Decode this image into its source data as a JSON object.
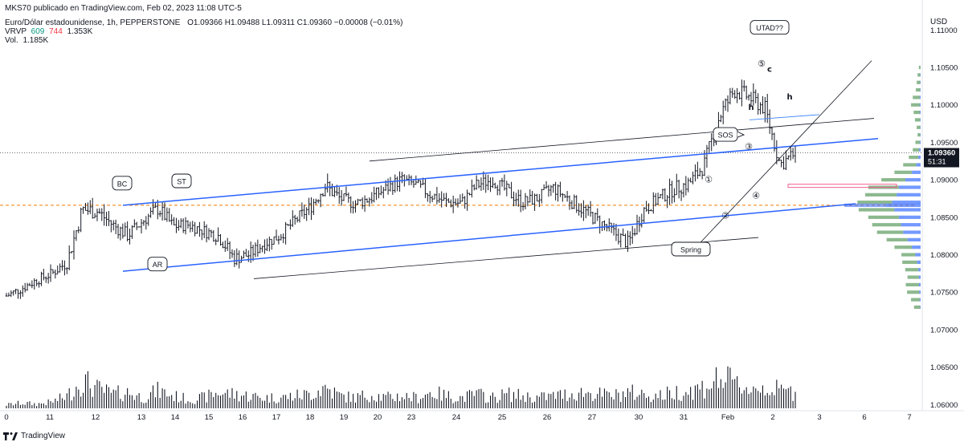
{
  "header": {
    "publisher": "MKS70 publicado en TradingView.com, Feb 02, 2023 11:08 UTC-5",
    "symbol": "Euro/Dólar estadounidense, 1h, PEPPERSTONE",
    "ohlc": "O1.09366  H1.09488  L1.09311  C1.09360  −0.00008 (−0.01%)",
    "vrvp_label": "VRVP",
    "vrvp_v1": "609",
    "vrvp_v2": "744",
    "vrvp_v3": "1.353K",
    "vol_label": "Vol.",
    "vol_value": "1.185K"
  },
  "footer": {
    "brand": "TradingView"
  },
  "colors": {
    "candle": "#131722",
    "channel": "#2962ff",
    "trendline": "#131722",
    "poc": "#f57c00",
    "profile_up": "#2e7d32",
    "profile_poc": "#2962ff",
    "pink": "#f06292",
    "label_bg": "#131722",
    "label_fg": "#ffffff"
  },
  "chart_data": {
    "type": "candlestick",
    "title": "Euro/Dólar estadounidense, 1h, PEPPERSTONE",
    "currency": "USD",
    "x_ticks": [
      "0",
      "11",
      "12",
      "13",
      "14",
      "15",
      "16",
      "17",
      "18",
      "19",
      "20",
      "23",
      "24",
      "25",
      "26",
      "27",
      "30",
      "31",
      "Feb",
      "2",
      "3",
      "6",
      "7"
    ],
    "y_ticks": [
      "1.11000",
      "1.10500",
      "1.10000",
      "1.09500",
      "1.09000",
      "1.08500",
      "1.08000",
      "1.07500",
      "1.07000",
      "1.06500",
      "1.06000"
    ],
    "ylim": [
      1.0595,
      1.1125
    ],
    "last_price": "1.09360",
    "countdown": "51:31",
    "poc_price": 1.0866,
    "pink_zone": 1.0892,
    "annotations": [
      {
        "text": "BC",
        "x": "12.5",
        "y": 1.0895,
        "style": "box"
      },
      {
        "text": "ST",
        "x": "15.7",
        "y": 1.0898,
        "style": "box"
      },
      {
        "text": "AR",
        "x": "13.4",
        "y": 1.0787,
        "style": "box"
      },
      {
        "text": "Spring",
        "x": "31.1",
        "y": 1.0807,
        "style": "box"
      },
      {
        "text": "SOS",
        "x": "Feb",
        "y": 1.096,
        "style": "callout"
      },
      {
        "text": "UTAD??",
        "x": "2",
        "y": 1.1103,
        "style": "box"
      },
      {
        "text": "①",
        "x": "31.4",
        "y": 1.09,
        "style": "text"
      },
      {
        "text": "②",
        "x": "31.9",
        "y": 1.0852,
        "style": "text"
      },
      {
        "text": "③",
        "x": "Feb",
        "y": 1.0944,
        "style": "text"
      },
      {
        "text": "④",
        "x": "Feb",
        "y": 1.0879,
        "style": "text"
      },
      {
        "text": "⑤",
        "x": "1.6",
        "y": 1.1055,
        "style": "text"
      },
      {
        "text": "c",
        "x": "1.8",
        "y": 1.1048,
        "style": "text"
      },
      {
        "text": "h",
        "x": "1.3",
        "y": 1.0997,
        "style": "text"
      },
      {
        "text": "h",
        "x": "2.4",
        "y": 1.1011,
        "style": "text"
      }
    ],
    "price_path": [
      [
        1.0745,
        0.1
      ],
      [
        1.0755,
        0.15
      ],
      [
        1.0766,
        0.12
      ],
      [
        1.0775,
        0.18
      ],
      [
        1.079,
        0.35
      ],
      [
        1.086,
        0.8
      ],
      [
        1.0858,
        0.55
      ],
      [
        1.084,
        0.4
      ],
      [
        1.0826,
        0.45
      ],
      [
        1.0845,
        0.3
      ],
      [
        1.0862,
        0.5
      ],
      [
        1.0838,
        0.35
      ],
      [
        1.084,
        0.25
      ],
      [
        1.0832,
        0.3
      ],
      [
        1.0825,
        0.45
      ],
      [
        1.0795,
        0.4
      ],
      [
        1.08,
        0.35
      ],
      [
        1.0815,
        0.3
      ],
      [
        1.0825,
        0.3
      ],
      [
        1.0845,
        0.35
      ],
      [
        1.0863,
        0.4
      ],
      [
        1.0892,
        0.6
      ],
      [
        1.0875,
        0.35
      ],
      [
        1.0868,
        0.3
      ],
      [
        1.0876,
        0.4
      ],
      [
        1.0888,
        0.3
      ],
      [
        1.09,
        0.35
      ],
      [
        1.0893,
        0.3
      ],
      [
        1.088,
        0.45
      ],
      [
        1.087,
        0.35
      ],
      [
        1.0869,
        0.3
      ],
      [
        1.0893,
        0.4
      ],
      [
        1.09,
        0.3
      ],
      [
        1.0885,
        0.4
      ],
      [
        1.087,
        0.35
      ],
      [
        1.0875,
        0.3
      ],
      [
        1.089,
        0.35
      ],
      [
        1.0875,
        0.4
      ],
      [
        1.086,
        0.45
      ],
      [
        1.0845,
        0.4
      ],
      [
        1.083,
        0.35
      ],
      [
        1.0815,
        0.45
      ],
      [
        1.086,
        0.4
      ],
      [
        1.0875,
        0.35
      ],
      [
        1.0888,
        0.45
      ],
      [
        1.0895,
        0.5
      ],
      [
        1.092,
        0.6
      ],
      [
        1.0985,
        0.85
      ],
      [
        1.102,
        0.7
      ],
      [
        1.101,
        0.55
      ],
      [
        1.0995,
        0.6
      ],
      [
        1.092,
        0.5
      ],
      [
        1.0936,
        0.45
      ]
    ],
    "volume_profile": [
      {
        "price": 1.105,
        "up": 0.04,
        "down": 0.0
      },
      {
        "price": 1.104,
        "up": 0.06,
        "down": 0.01
      },
      {
        "price": 1.103,
        "up": 0.08,
        "down": 0.01
      },
      {
        "price": 1.102,
        "up": 0.1,
        "down": 0.01
      },
      {
        "price": 1.101,
        "up": 0.16,
        "down": 0.02
      },
      {
        "price": 1.1,
        "up": 0.2,
        "down": 0.02
      },
      {
        "price": 1.099,
        "up": 0.14,
        "down": 0.02
      },
      {
        "price": 1.098,
        "up": 0.12,
        "down": 0.01
      },
      {
        "price": 1.097,
        "up": 0.08,
        "down": 0.01
      },
      {
        "price": 1.096,
        "up": 0.06,
        "down": 0.01
      },
      {
        "price": 1.095,
        "up": 0.1,
        "down": 0.02
      },
      {
        "price": 1.094,
        "up": 0.15,
        "down": 0.03
      },
      {
        "price": 1.093,
        "up": 0.22,
        "down": 0.05
      },
      {
        "price": 1.092,
        "up": 0.3,
        "down": 0.1
      },
      {
        "price": 1.091,
        "up": 0.4,
        "down": 0.2
      },
      {
        "price": 1.09,
        "up": 0.55,
        "down": 0.35
      },
      {
        "price": 1.089,
        "up": 0.7,
        "down": 0.5
      },
      {
        "price": 1.088,
        "up": 0.72,
        "down": 0.55
      },
      {
        "price": 1.087,
        "up": 0.8,
        "down": 0.65
      },
      {
        "price": 1.0866,
        "up": 0.95,
        "down": 0.8
      },
      {
        "price": 1.086,
        "up": 0.82,
        "down": 0.6
      },
      {
        "price": 1.085,
        "up": 0.7,
        "down": 0.5
      },
      {
        "price": 1.084,
        "up": 0.66,
        "down": 0.45
      },
      {
        "price": 1.083,
        "up": 0.6,
        "down": 0.4
      },
      {
        "price": 1.082,
        "up": 0.48,
        "down": 0.3
      },
      {
        "price": 1.081,
        "up": 0.4,
        "down": 0.2
      },
      {
        "price": 1.08,
        "up": 0.32,
        "down": 0.12
      },
      {
        "price": 1.079,
        "up": 0.34,
        "down": 0.08
      },
      {
        "price": 1.078,
        "up": 0.3,
        "down": 0.05
      },
      {
        "price": 1.077,
        "up": 0.26,
        "down": 0.04
      },
      {
        "price": 1.076,
        "up": 0.3,
        "down": 0.04
      },
      {
        "price": 1.075,
        "up": 0.28,
        "down": 0.03
      },
      {
        "price": 1.074,
        "up": 0.2,
        "down": 0.02
      },
      {
        "price": 1.073,
        "up": 0.14,
        "down": 0.01
      }
    ]
  }
}
